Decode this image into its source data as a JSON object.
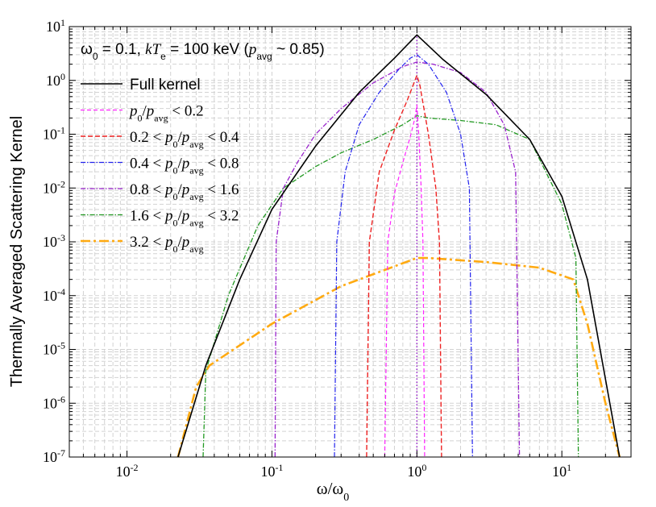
{
  "chart_data": {
    "type": "line",
    "title": "",
    "annotation": {
      "prefix": "ω",
      "sub0": "0",
      "eq1": " = 0.1, ",
      "kT": "kT",
      "sub_e": "e",
      "eq2": " = 100 keV (",
      "p": "p",
      "sub_avg": "avg",
      "eq3": " ~ 0.85)"
    },
    "xlabel": "ω/ω",
    "xlabel_sub": "0",
    "ylabel": "Thermally Averaged Scattering Kernel",
    "x_scale": "log",
    "y_scale": "log",
    "xlim": [
      0.004,
      30
    ],
    "ylim": [
      1e-07,
      10
    ],
    "grid": true,
    "legend_position": "top-left",
    "x_ticks": [
      {
        "value": 0.01,
        "base": "10",
        "exp": "-2"
      },
      {
        "value": 0.1,
        "base": "10",
        "exp": "-1"
      },
      {
        "value": 1,
        "base": "10",
        "exp": "0"
      },
      {
        "value": 10,
        "base": "10",
        "exp": "1"
      }
    ],
    "y_ticks": [
      {
        "value": 1e-07,
        "base": "10",
        "exp": "-7"
      },
      {
        "value": 1e-06,
        "base": "10",
        "exp": "-6"
      },
      {
        "value": 1e-05,
        "base": "10",
        "exp": "-5"
      },
      {
        "value": 0.0001,
        "base": "10",
        "exp": "-4"
      },
      {
        "value": 0.001,
        "base": "10",
        "exp": "-3"
      },
      {
        "value": 0.01,
        "base": "10",
        "exp": "-2"
      },
      {
        "value": 0.1,
        "base": "10",
        "exp": "-1"
      },
      {
        "value": 1,
        "base": "10",
        "exp": "0"
      },
      {
        "value": 10,
        "base": "10",
        "exp": "1"
      }
    ],
    "series": [
      {
        "name": "Full kernel",
        "legend": {
          "plain": "Full kernel"
        },
        "color": "#000000",
        "dash": "",
        "width": 1.6,
        "x": [
          0.0225,
          0.035,
          0.06,
          0.1,
          0.2,
          0.4,
          0.7,
          1.0,
          1.5,
          3,
          6,
          10,
          15,
          25
        ],
        "y": [
          1e-07,
          5e-06,
          0.0002,
          0.004,
          0.06,
          0.6,
          2.6,
          7,
          2.5,
          0.55,
          0.08,
          0.007,
          0.0002,
          1e-07
        ]
      },
      {
        "name": "p0/pavg < 0.2",
        "legend": {
          "pre": "",
          "mid": " < 0.2"
        },
        "color": "#ff22ff",
        "dash": "5,3",
        "width": 1.2,
        "x": [
          0.6,
          0.63,
          0.7,
          0.8,
          0.9,
          0.97,
          1.0,
          1.03,
          1.07,
          1.1,
          1.13
        ],
        "y": [
          1e-07,
          0.001,
          0.008,
          0.03,
          0.09,
          0.2,
          0.35,
          0.1,
          0.01,
          0.001,
          1e-07
        ]
      },
      {
        "name": "0.2 < p0/pavg < 0.4",
        "legend": {
          "pre": "0.2 < ",
          "mid": " < 0.4"
        },
        "color": "#ee2222",
        "dash": "6,3",
        "width": 1.4,
        "x": [
          0.45,
          0.47,
          0.55,
          0.7,
          0.85,
          0.97,
          1.0,
          1.05,
          1.2,
          1.35,
          1.43,
          1.48
        ],
        "y": [
          1e-07,
          0.001,
          0.02,
          0.12,
          0.4,
          1.0,
          1.25,
          0.8,
          0.1,
          0.01,
          0.001,
          1e-07
        ]
      },
      {
        "name": "0.4 < p0/pavg < 0.8",
        "legend": {
          "pre": "0.4 < ",
          "mid": " < 0.8"
        },
        "color": "#2222ee",
        "dash": "6,2,1.5,2",
        "width": 1.2,
        "x": [
          0.27,
          0.28,
          0.32,
          0.4,
          0.55,
          0.75,
          0.9,
          1.0,
          1.2,
          1.6,
          2.0,
          2.3,
          2.42
        ],
        "y": [
          1e-07,
          0.001,
          0.02,
          0.15,
          0.6,
          1.6,
          2.6,
          3.0,
          2.0,
          0.6,
          0.1,
          0.01,
          1e-07
        ]
      },
      {
        "name": "0.8 < p0/pavg < 1.6",
        "legend": {
          "pre": "0.8 < ",
          "mid": " < 1.6"
        },
        "color": "#9922cc",
        "dash": "6,2,1.5,2",
        "width": 1.3,
        "x": [
          0.105,
          0.107,
          0.12,
          0.15,
          0.2,
          0.3,
          0.5,
          0.8,
          1.0,
          1.3,
          2.0,
          3.0,
          4.0,
          4.8,
          5.1
        ],
        "y": [
          1e-07,
          0.001,
          0.01,
          0.03,
          0.1,
          0.3,
          0.9,
          1.8,
          2.2,
          2.0,
          1.4,
          0.6,
          0.15,
          0.02,
          1e-07
        ]
      },
      {
        "name": "1.6 < p0/pavg < 3.2",
        "legend": {
          "pre": "1.6 < ",
          "mid": " < 3.2"
        },
        "color": "#229922",
        "dash": "6,2,1.5,2",
        "width": 1.3,
        "x": [
          0.0335,
          0.035,
          0.05,
          0.08,
          0.12,
          0.2,
          0.3,
          0.5,
          0.8,
          1.0,
          1.2,
          2.0,
          3.5,
          6,
          10,
          12.5,
          13
        ],
        "y": [
          1e-07,
          4e-06,
          0.0001,
          0.002,
          0.01,
          0.025,
          0.045,
          0.08,
          0.15,
          0.22,
          0.2,
          0.18,
          0.15,
          0.08,
          0.005,
          0.0005,
          1e-07
        ]
      },
      {
        "name": "3.2 < p0/pavg",
        "legend": {
          "pre": "3.2 < ",
          "mid": ""
        },
        "color": "#ffaa11",
        "dash": "12,4,3,4",
        "width": 2.6,
        "x": [
          0.0225,
          0.03,
          0.037,
          0.1,
          0.3,
          1.0,
          1.2,
          3,
          7,
          12,
          15,
          20,
          25
        ],
        "y": [
          1e-07,
          2e-06,
          5e-06,
          3e-05,
          0.00015,
          0.0005,
          0.0005,
          0.00042,
          0.00033,
          0.0002,
          3e-05,
          1e-06,
          1e-07
        ]
      }
    ],
    "vertical_marker": {
      "x": 1.0,
      "y": [
        1e-07,
        7
      ],
      "color": "#9922cc",
      "dash": "1.5,2.5"
    }
  }
}
